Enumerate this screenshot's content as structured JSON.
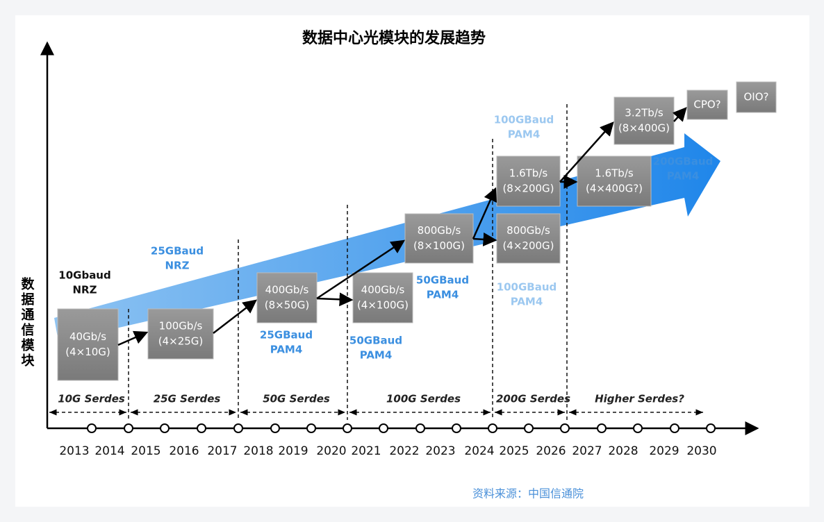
{
  "title": "数据中心光模块的发展趋势",
  "y_axis_label": [
    "数",
    "据",
    "通",
    "信",
    "模",
    "块"
  ],
  "years": [
    "2013",
    "2014",
    "2015",
    "2016",
    "2017",
    "2018",
    "2019",
    "2020",
    "2021",
    "2022",
    "2023",
    "2024",
    "2025",
    "2026",
    "2027",
    "2028",
    "2029",
    "2030"
  ],
  "serdes": [
    "10G Serdes",
    "25G Serdes",
    "50G Serdes",
    "100G Serdes",
    "200G Serdes",
    "Higher Serdes?"
  ],
  "boxes": [
    {
      "lines": [
        "40Gb/s",
        "(4×10G)"
      ]
    },
    {
      "lines": [
        "100Gb/s",
        "(4×25G)"
      ]
    },
    {
      "lines": [
        "400Gb/s",
        "(8×50G)"
      ]
    },
    {
      "lines": [
        "400Gb/s",
        "(4×100G)"
      ]
    },
    {
      "lines": [
        "800Gb/s",
        "(8×100G)"
      ]
    },
    {
      "lines": [
        "1.6Tb/s",
        "(8×200G)"
      ]
    },
    {
      "lines": [
        "800Gb/s",
        "(4×200G)"
      ]
    },
    {
      "lines": [
        "1.6Tb/s",
        "(4×400G?)"
      ]
    },
    {
      "lines": [
        "3.2Tb/s",
        "(8×400G)"
      ]
    },
    {
      "lines": [
        "CPO?"
      ]
    },
    {
      "lines": [
        "OIO?"
      ]
    }
  ],
  "baud_labels": [
    {
      "lines": [
        "10Gbaud",
        "NRZ"
      ]
    },
    {
      "lines": [
        "25GBaud",
        "NRZ"
      ]
    },
    {
      "lines": [
        "25GBaud",
        "PAM4"
      ]
    },
    {
      "lines": [
        "50GBaud",
        "PAM4"
      ]
    },
    {
      "lines": [
        "50GBaud",
        "PAM4"
      ]
    },
    {
      "lines": [
        "100GBaud",
        "PAM4"
      ]
    },
    {
      "lines": [
        "100GBaud",
        "PAM4"
      ]
    },
    {
      "lines": [
        "200GBaud",
        "PAM4"
      ]
    }
  ],
  "source": "资料来源：中国信通院"
}
